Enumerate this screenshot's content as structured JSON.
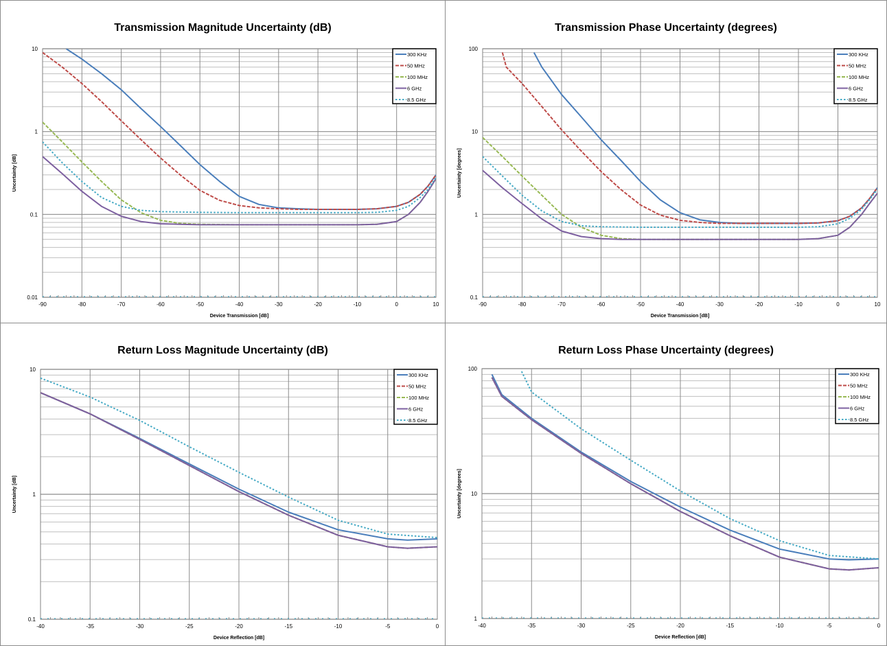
{
  "chart_data": [
    {
      "type": "line",
      "title": "Transmission Magnitude Uncertainty (dB)",
      "xlabel": "Device Transmission [dB]",
      "ylabel": "Uncertainty [dB]",
      "xlim": [
        -90,
        10
      ],
      "xticks": [
        -90,
        -80,
        -70,
        -60,
        -50,
        -40,
        -30,
        -20,
        -10,
        0,
        10
      ],
      "ylim": [
        0.01,
        10
      ],
      "yscale": "log",
      "yticks": [
        0.01,
        0.1,
        1,
        10
      ],
      "ytick_labels": [
        "0.01",
        "0.1",
        "1",
        "10"
      ],
      "grid": true,
      "legend": "top-right",
      "series": [
        {
          "name": "300 KHz",
          "color": "#4a7ebb",
          "dash": "solid",
          "x": [
            -84,
            -80,
            -75,
            -70,
            -65,
            -60,
            -55,
            -50,
            -45,
            -40,
            -35,
            -30,
            -25,
            -20,
            -15,
            -10,
            -5,
            0,
            3,
            6,
            8,
            10
          ],
          "y": [
            10,
            7.5,
            5,
            3.2,
            1.9,
            1.15,
            0.68,
            0.4,
            0.25,
            0.165,
            0.132,
            0.12,
            0.117,
            0.115,
            0.115,
            0.115,
            0.117,
            0.125,
            0.14,
            0.175,
            0.22,
            0.3
          ]
        },
        {
          "name": "50 MHz",
          "color": "#be4b48",
          "dash": "dashed",
          "x": [
            -90,
            -85,
            -80,
            -75,
            -70,
            -65,
            -60,
            -55,
            -50,
            -45,
            -40,
            -35,
            -30,
            -25,
            -20,
            -15,
            -10,
            -5,
            0,
            3,
            6,
            8,
            10
          ],
          "y": [
            9,
            6,
            3.8,
            2.3,
            1.35,
            0.8,
            0.48,
            0.3,
            0.195,
            0.148,
            0.128,
            0.12,
            0.117,
            0.115,
            0.115,
            0.115,
            0.115,
            0.117,
            0.125,
            0.14,
            0.175,
            0.22,
            0.3
          ]
        },
        {
          "name": "100 MHz",
          "color": "#98b954",
          "dash": "dashed",
          "x": [
            -90,
            -85,
            -80,
            -75,
            -70,
            -65,
            -60,
            -55,
            -50,
            -40,
            -30,
            -20,
            -10,
            -5,
            0,
            3,
            6,
            8,
            10
          ],
          "y": [
            1.3,
            0.75,
            0.43,
            0.25,
            0.15,
            0.105,
            0.085,
            0.078,
            0.076,
            0.075,
            0.075,
            0.075,
            0.075,
            0.076,
            0.082,
            0.1,
            0.14,
            0.19,
            0.27
          ]
        },
        {
          "name": "6 GHz",
          "color": "#7d60a0",
          "dash": "solid",
          "x": [
            -90,
            -85,
            -80,
            -75,
            -70,
            -65,
            -60,
            -55,
            -50,
            -40,
            -30,
            -20,
            -10,
            -5,
            0,
            3,
            6,
            8,
            10
          ],
          "y": [
            0.5,
            0.31,
            0.19,
            0.125,
            0.095,
            0.082,
            0.077,
            0.076,
            0.075,
            0.075,
            0.075,
            0.075,
            0.075,
            0.076,
            0.082,
            0.1,
            0.14,
            0.19,
            0.27
          ]
        },
        {
          "name": "8.5 GHz",
          "color": "#46aac5",
          "dash": "dotted",
          "x": [
            -90,
            -85,
            -80,
            -75,
            -70,
            -65,
            -60,
            -50,
            -40,
            -30,
            -20,
            -10,
            -5,
            0,
            3,
            6,
            8,
            10
          ],
          "y": [
            0.75,
            0.42,
            0.25,
            0.16,
            0.125,
            0.112,
            0.108,
            0.106,
            0.105,
            0.105,
            0.105,
            0.105,
            0.106,
            0.112,
            0.125,
            0.16,
            0.2,
            0.28
          ]
        }
      ]
    },
    {
      "type": "line",
      "title": "Transmission Phase Uncertainty (degrees)",
      "xlabel": "Device Transmission [dB]",
      "ylabel": "Uncertainty [degrees]",
      "xlim": [
        -90,
        10
      ],
      "xticks": [
        -90,
        -80,
        -70,
        -60,
        -50,
        -40,
        -30,
        -20,
        -10,
        0,
        10
      ],
      "ylim": [
        0.1,
        100
      ],
      "yscale": "log",
      "yticks": [
        0.1,
        1,
        10,
        100
      ],
      "ytick_labels": [
        "0.1",
        "1",
        "10",
        "100"
      ],
      "grid": true,
      "legend": "top-right",
      "series": [
        {
          "name": "300 KHz",
          "color": "#4a7ebb",
          "dash": "solid",
          "x": [
            -77,
            -75,
            -70,
            -65,
            -60,
            -55,
            -50,
            -45,
            -40,
            -35,
            -30,
            -25,
            -20,
            -15,
            -10,
            -5,
            0,
            3,
            6,
            8,
            10
          ],
          "y": [
            90,
            60,
            28,
            15,
            8,
            4.5,
            2.5,
            1.5,
            1.05,
            0.86,
            0.8,
            0.78,
            0.78,
            0.78,
            0.78,
            0.79,
            0.84,
            0.95,
            1.2,
            1.55,
            2.1
          ]
        },
        {
          "name": "50 MHz",
          "color": "#be4b48",
          "dash": "dashed",
          "x": [
            -85,
            -84,
            -80,
            -75,
            -70,
            -65,
            -60,
            -55,
            -50,
            -45,
            -40,
            -35,
            -30,
            -25,
            -20,
            -15,
            -10,
            -5,
            0,
            3,
            6,
            8,
            10
          ],
          "y": [
            90,
            60,
            38,
            20,
            10.5,
            5.8,
            3.3,
            2,
            1.3,
            0.98,
            0.85,
            0.8,
            0.78,
            0.78,
            0.78,
            0.78,
            0.78,
            0.79,
            0.84,
            0.95,
            1.2,
            1.55,
            2.1
          ]
        },
        {
          "name": "100 MHz",
          "color": "#98b954",
          "dash": "dashed",
          "x": [
            -90,
            -85,
            -80,
            -75,
            -70,
            -65,
            -60,
            -55,
            -50,
            -40,
            -30,
            -20,
            -10,
            -5,
            0,
            3,
            6,
            8,
            10
          ],
          "y": [
            8.5,
            5,
            2.9,
            1.7,
            1,
            0.7,
            0.56,
            0.51,
            0.5,
            0.5,
            0.5,
            0.5,
            0.5,
            0.51,
            0.56,
            0.7,
            1,
            1.35,
            1.8
          ]
        },
        {
          "name": "6 GHz",
          "color": "#7d60a0",
          "dash": "solid",
          "x": [
            -90,
            -85,
            -80,
            -75,
            -70,
            -65,
            -60,
            -55,
            -50,
            -40,
            -30,
            -20,
            -10,
            -5,
            0,
            3,
            6,
            8,
            10
          ],
          "y": [
            3.4,
            2.1,
            1.35,
            0.88,
            0.63,
            0.54,
            0.51,
            0.5,
            0.5,
            0.5,
            0.5,
            0.5,
            0.5,
            0.51,
            0.56,
            0.7,
            1,
            1.35,
            1.8
          ]
        },
        {
          "name": "8.5 GHz",
          "color": "#46aac5",
          "dash": "dotted",
          "x": [
            -90,
            -85,
            -80,
            -75,
            -70,
            -65,
            -60,
            -50,
            -40,
            -30,
            -20,
            -10,
            -5,
            0,
            3,
            6,
            8,
            10
          ],
          "y": [
            5,
            2.9,
            1.7,
            1.1,
            0.82,
            0.73,
            0.71,
            0.7,
            0.7,
            0.7,
            0.7,
            0.7,
            0.71,
            0.77,
            0.9,
            1.15,
            1.5,
            2
          ]
        }
      ]
    },
    {
      "type": "line",
      "title": "Return Loss Magnitude Uncertainty (dB)",
      "xlabel": "Device Reflection [dB]",
      "ylabel": "Uncertainty [dB]",
      "xlim": [
        -40,
        0
      ],
      "xticks": [
        -40,
        -35,
        -30,
        -25,
        -20,
        -15,
        -10,
        -5,
        0
      ],
      "ylim": [
        0.1,
        10
      ],
      "yscale": "log",
      "yticks": [
        0.1,
        1,
        10
      ],
      "ytick_labels": [
        "0.1",
        "1",
        "10"
      ],
      "grid": true,
      "legend": "top-right",
      "series": [
        {
          "name": "300 KHz",
          "color": "#4a7ebb",
          "dash": "solid",
          "x": [
            -40,
            -35,
            -30,
            -25,
            -20,
            -15,
            -10,
            -5,
            -3,
            0
          ],
          "y": [
            6.5,
            4.4,
            2.8,
            1.75,
            1.1,
            0.72,
            0.52,
            0.44,
            0.43,
            0.44
          ]
        },
        {
          "name": "50 MHz",
          "color": "#be4b48",
          "dash": "dashed",
          "x": [
            -40,
            -35,
            -30,
            -25,
            -20,
            -15,
            -10,
            -5,
            -3,
            0
          ],
          "y": [
            6.5,
            4.4,
            2.75,
            1.7,
            1.05,
            0.68,
            0.47,
            0.38,
            0.37,
            0.38
          ]
        },
        {
          "name": "100 MHz",
          "color": "#98b954",
          "dash": "dashed",
          "x": [
            -40,
            -35,
            -30,
            -25,
            -20,
            -15,
            -10,
            -5,
            -3,
            0
          ],
          "y": [
            6.5,
            4.4,
            2.75,
            1.7,
            1.05,
            0.68,
            0.47,
            0.38,
            0.37,
            0.38
          ]
        },
        {
          "name": "6 GHz",
          "color": "#7d60a0",
          "dash": "solid",
          "x": [
            -40,
            -35,
            -30,
            -25,
            -20,
            -15,
            -10,
            -5,
            -3,
            0
          ],
          "y": [
            6.5,
            4.4,
            2.75,
            1.7,
            1.05,
            0.68,
            0.47,
            0.38,
            0.37,
            0.38
          ]
        },
        {
          "name": "8.5 GHz",
          "color": "#46aac5",
          "dash": "dotted",
          "x": [
            -40,
            -35,
            -30,
            -25,
            -20,
            -15,
            -10,
            -5,
            0
          ],
          "y": [
            8.5,
            6,
            3.9,
            2.4,
            1.5,
            0.95,
            0.62,
            0.48,
            0.45
          ]
        }
      ]
    },
    {
      "type": "line",
      "title": "Return Loss Phase Uncertainty (degrees)",
      "xlabel": "Device Reflection [dB]",
      "ylabel": "Uncertainty [degrees]",
      "xlim": [
        -40,
        0
      ],
      "xticks": [
        -40,
        -35,
        -30,
        -25,
        -20,
        -15,
        -10,
        -5,
        0
      ],
      "ylim": [
        1,
        100
      ],
      "yscale": "log",
      "yticks": [
        1,
        10,
        100
      ],
      "ytick_labels": [
        "1",
        "10",
        "100"
      ],
      "grid": true,
      "legend": "top-right",
      "series": [
        {
          "name": "300 KHz",
          "color": "#4a7ebb",
          "dash": "solid",
          "x": [
            -39,
            -38,
            -35,
            -30,
            -25,
            -20,
            -15,
            -10,
            -5,
            -3,
            0
          ],
          "y": [
            90,
            62,
            40,
            21.5,
            12.5,
            7.8,
            5.1,
            3.6,
            3,
            2.95,
            3
          ]
        },
        {
          "name": "50 MHz",
          "color": "#be4b48",
          "dash": "dashed",
          "x": [
            -39,
            -38,
            -35,
            -30,
            -25,
            -20,
            -15,
            -10,
            -5,
            -3,
            0
          ],
          "y": [
            85,
            60,
            39,
            21,
            12,
            7.2,
            4.6,
            3.1,
            2.5,
            2.45,
            2.55
          ]
        },
        {
          "name": "100 MHz",
          "color": "#98b954",
          "dash": "dashed",
          "x": [
            -39,
            -38,
            -35,
            -30,
            -25,
            -20,
            -15,
            -10,
            -5,
            -3,
            0
          ],
          "y": [
            85,
            60,
            39,
            21,
            12,
            7.2,
            4.6,
            3.1,
            2.5,
            2.45,
            2.55
          ]
        },
        {
          "name": "6 GHz",
          "color": "#7d60a0",
          "dash": "solid",
          "x": [
            -39,
            -38,
            -35,
            -30,
            -25,
            -20,
            -15,
            -10,
            -5,
            -3,
            0
          ],
          "y": [
            85,
            60,
            39,
            21,
            12,
            7.2,
            4.6,
            3.1,
            2.5,
            2.45,
            2.55
          ]
        },
        {
          "name": "8.5 GHz",
          "color": "#46aac5",
          "dash": "dotted",
          "x": [
            -36,
            -35,
            -30,
            -25,
            -20,
            -15,
            -10,
            -5,
            0
          ],
          "y": [
            95,
            65,
            33,
            18.5,
            10.5,
            6.3,
            4.2,
            3.2,
            3
          ]
        }
      ]
    }
  ]
}
